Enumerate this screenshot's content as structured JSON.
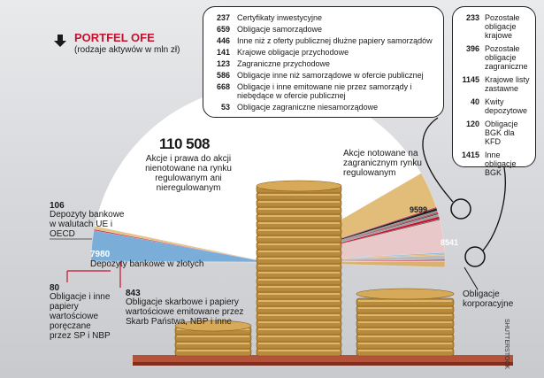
{
  "header": {
    "title": "PORTFEL OFE",
    "subtitle": "(rodzaje aktywów w mln zł)",
    "accent": "#c8102e"
  },
  "credit": "SHUTTERSTOCK",
  "chart_data": {
    "type": "pie",
    "title": "PORTFEL OFE",
    "subtitle": "(rodzaje aktywów w mln zł)",
    "series": [
      {
        "value": 110508,
        "label": "Akcje i prawa do akcji nienotowane na rynku regulowanym ani nieregulowanym",
        "color": "#ffffff"
      },
      {
        "value": 9599,
        "label": "Akcje notowane na zagranicznym rynku regulowanym",
        "color": "#e2bd7a"
      },
      {
        "value": 237,
        "label": "Certyfikaty inwestycyjne",
        "color": "#c8102e"
      },
      {
        "value": 659,
        "label": "Obligacje samorządowe",
        "color": "#1f1f1f"
      },
      {
        "value": 446,
        "label": "Inne niż z oferty publicznej dłużne papiery samorządów",
        "color": "#8a8a8a"
      },
      {
        "value": 141,
        "label": "Krajowe obligacje przychodowe",
        "color": "#c8102e"
      },
      {
        "value": 123,
        "label": "Zagraniczne przychodowe",
        "color": "#2a2a2a"
      },
      {
        "value": 586,
        "label": "Obligacje inne niż samorządowe w ofercie publicznej",
        "color": "#9a9a9a"
      },
      {
        "value": 668,
        "label": "Obligacje i inne emitowane nie przez samorządy i niebędące w ofercie publicznej",
        "color": "#c8102e"
      },
      {
        "value": 53,
        "label": "Obligacje zagraniczne niesamorządowe",
        "color": "#444444"
      },
      {
        "value": 8541,
        "label": "Obligacje korporacyjne",
        "color": "#e8c8c8"
      },
      {
        "value": 233,
        "label": "Pozostałe obligacje krajowe",
        "color": "#7aaed8"
      },
      {
        "value": 396,
        "label": "Pozostałe obligacje zagraniczne",
        "color": "#e8b86a"
      },
      {
        "value": 1145,
        "label": "Krajowe listy zastawne",
        "color": "#bbbbbb"
      },
      {
        "value": 40,
        "label": "Kwity depozytowe",
        "color": "#c8102e"
      },
      {
        "value": 120,
        "label": "Obligacje BGK dla KFD",
        "color": "#9cc4e4"
      },
      {
        "value": 1415,
        "label": "Inne obligacje BGK",
        "color": "#d9b272"
      },
      {
        "value": 843,
        "label": "Obligacje skarbowe i papiery wartościowe emitowane przez Skarb Państwa, NBP i inne",
        "color": "#e5c48a"
      },
      {
        "value": 80,
        "label": "Obligacje i inne papiery wartościowe poręczane przez SP i NBP",
        "color": "#c8102e"
      },
      {
        "value": 7980,
        "label": "Depozyty bankowe w złotych",
        "color": "#7aaed8"
      },
      {
        "value": 106,
        "label": "Depozyty bankowe w walutach UE i OECD",
        "color": "#9cc4e4"
      }
    ]
  },
  "big": {
    "value": "110 508",
    "label": "Akcje i prawa do akcji nienotowane na rynku regulowanym ani nieregulowanym"
  },
  "foreign_shares": {
    "value": "9599",
    "label": "Akcje notowane na zagranicznym rynku regulowanym"
  },
  "corporate": {
    "value": "8541",
    "label": "Obligacje korporacyjne"
  },
  "deposits_pln": {
    "value": "7980",
    "label": "Depozyty bankowe w złotych"
  },
  "deposits_fx": {
    "value": "106",
    "label": "Depozyty bankowe w walutach UE i OECD"
  },
  "guaranteed": {
    "value": "80",
    "label": "Obligacje i inne papiery wartościowe poręczane przez SP i NBP"
  },
  "treasury": {
    "value": "843",
    "label": "Obligacje skarbowe i papiery wartościowe emitowane przez Skarb Państwa, NBP i inne"
  },
  "top_box": [
    {
      "value": "237",
      "label": "Certyfikaty inwestycyjne"
    },
    {
      "value": "659",
      "label": "Obligacje samorządowe"
    },
    {
      "value": "446",
      "label": "Inne niż z oferty publicznej dłużne papiery samorządów"
    },
    {
      "value": "141",
      "label": "Krajowe obligacje przychodowe"
    },
    {
      "value": "123",
      "label": "Zagraniczne  przychodowe"
    },
    {
      "value": "586",
      "label": "Obligacje inne niż samorządowe w ofercie publicznej"
    },
    {
      "value": "668",
      "label": "Obligacje i inne emitowane nie przez samorządy i niebędące w ofercie publicznej"
    },
    {
      "value": "53",
      "label": "Obligacje zagraniczne niesamorządowe"
    }
  ],
  "right_box": [
    {
      "value": "233",
      "label": "Pozostałe obligacje krajowe"
    },
    {
      "value": "396",
      "label": "Pozostałe obligacje zagraniczne"
    },
    {
      "value": "1145",
      "label": "Krajowe listy zastawne"
    },
    {
      "value": "40",
      "label": "Kwity depozytowe"
    },
    {
      "value": "120",
      "label": "Obligacje BGK dla KFD"
    },
    {
      "value": "1415",
      "label": "Inne obligacje BGK"
    }
  ]
}
